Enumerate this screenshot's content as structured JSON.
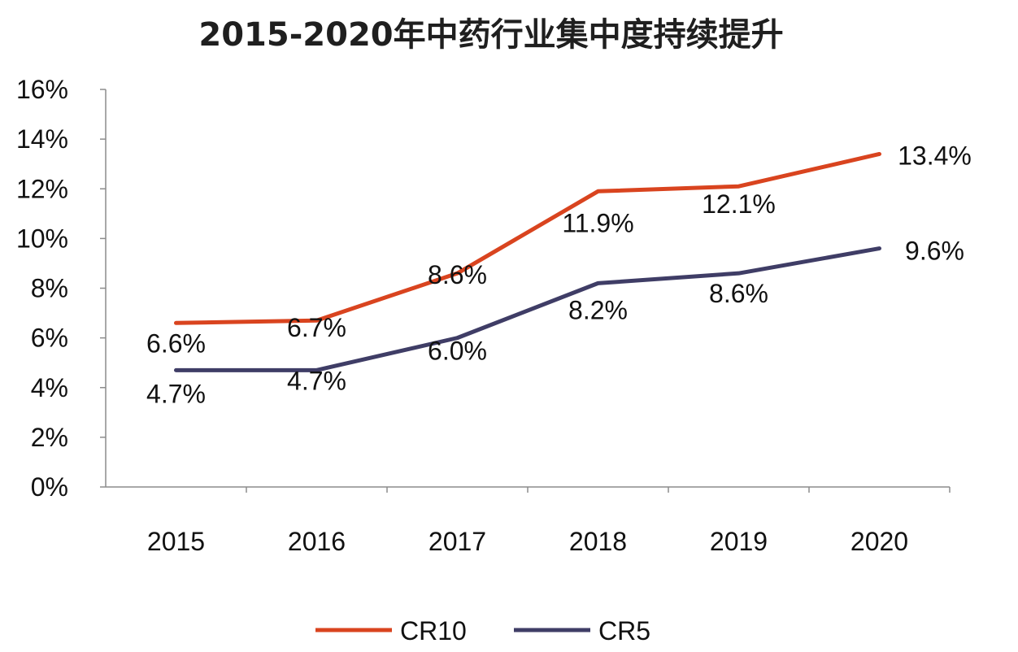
{
  "chart_data": {
    "type": "line",
    "title": "2015-2020年中药行业集中度持续提升",
    "xlabel": "",
    "ylabel": "",
    "categories": [
      "2015",
      "2016",
      "2017",
      "2018",
      "2019",
      "2020"
    ],
    "ylim": [
      0,
      16
    ],
    "yticks": [
      0,
      2,
      4,
      6,
      8,
      10,
      12,
      14,
      16
    ],
    "ytick_labels": [
      "0%",
      "2%",
      "4%",
      "6%",
      "8%",
      "10%",
      "12%",
      "14%",
      "16%"
    ],
    "grid": false,
    "legend_position": "bottom-center",
    "series": [
      {
        "name": "CR10",
        "color": "#d9441f",
        "values": [
          6.6,
          6.7,
          8.6,
          11.9,
          12.1,
          13.4
        ],
        "labels": [
          "6.6%",
          "6.7%",
          "8.6%",
          "11.9%",
          "12.1%",
          "13.4%"
        ]
      },
      {
        "name": "CR5",
        "color": "#3f3d66",
        "values": [
          4.7,
          4.7,
          6.0,
          8.2,
          8.6,
          9.6
        ],
        "labels": [
          "4.7%",
          "4.7%",
          "6.0%",
          "8.2%",
          "8.6%",
          "9.6%"
        ]
      }
    ]
  }
}
